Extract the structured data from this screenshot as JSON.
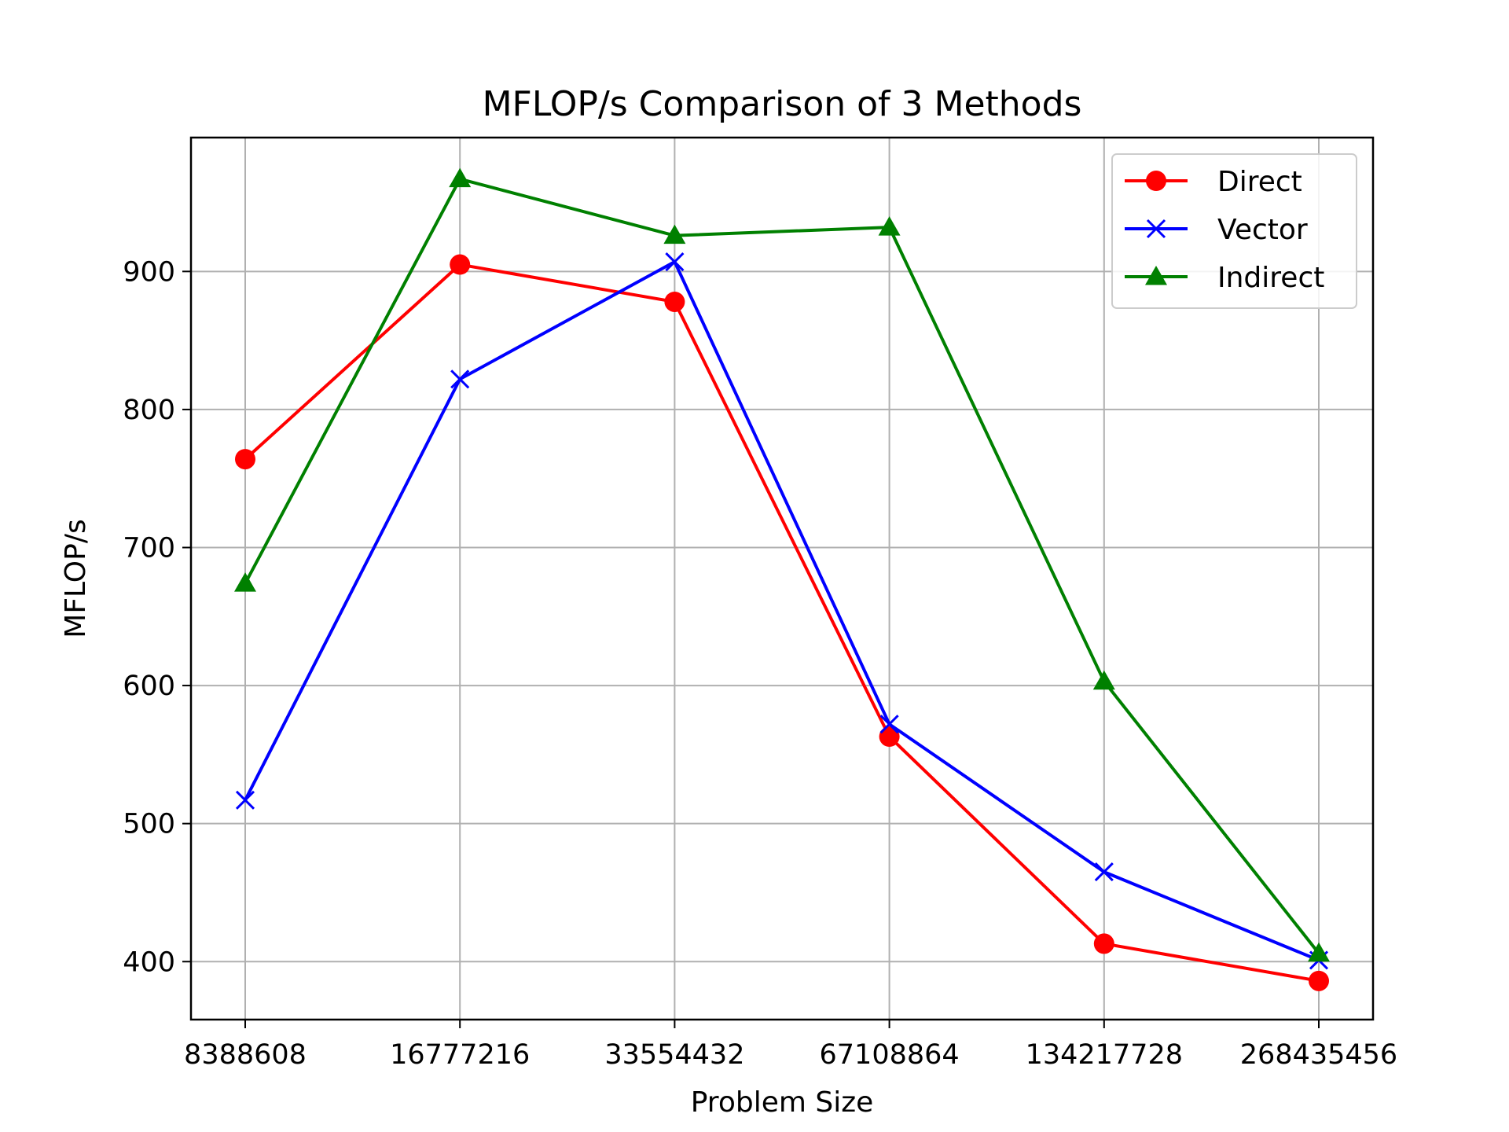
{
  "chart_data": {
    "type": "line",
    "title": "MFLOP/s Comparison of 3 Methods",
    "xlabel": "Problem Size",
    "ylabel": "MFLOP/s",
    "categories": [
      "8388608",
      "16777216",
      "33554432",
      "67108864",
      "134217728",
      "268435456"
    ],
    "ylim": [
      358,
      997
    ],
    "yticks": [
      400,
      500,
      600,
      700,
      800,
      900
    ],
    "grid": true,
    "legend_position": "top-right",
    "series": [
      {
        "name": "Direct",
        "color": "#ff0000",
        "marker": "circle",
        "values": [
          764,
          905,
          878,
          563,
          413,
          386
        ]
      },
      {
        "name": "Vector",
        "color": "#0000ff",
        "marker": "x",
        "values": [
          517,
          822,
          907,
          572,
          465,
          401
        ]
      },
      {
        "name": "Indirect",
        "color": "#008000",
        "marker": "triangle",
        "values": [
          674,
          967,
          926,
          932,
          603,
          406
        ]
      }
    ]
  }
}
